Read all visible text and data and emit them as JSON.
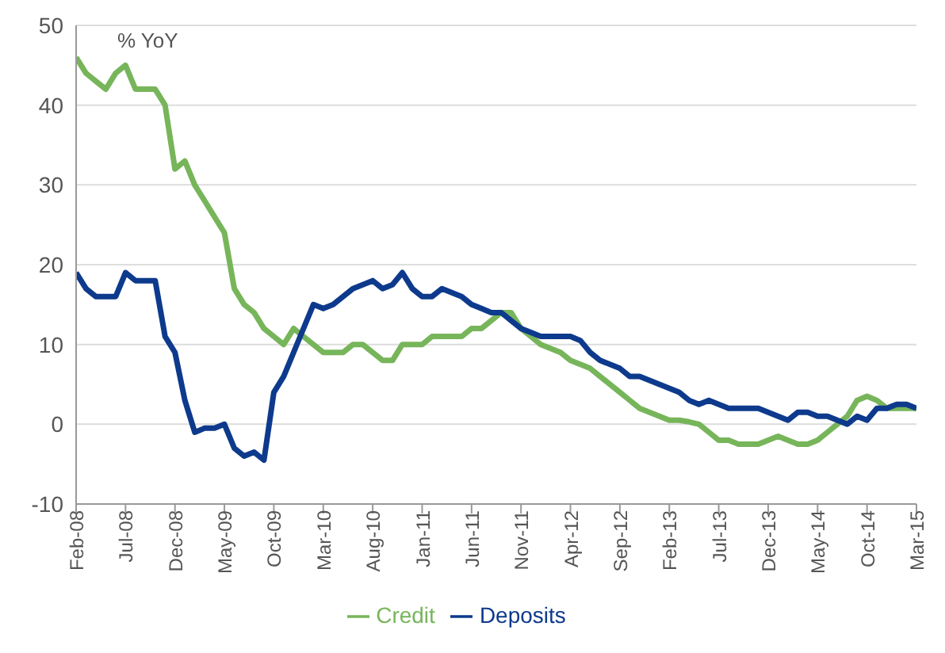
{
  "chart_data": {
    "type": "line",
    "ylabel": "% YoY",
    "categories": [
      "Feb-08",
      null,
      null,
      null,
      null,
      "Jul-08",
      null,
      null,
      null,
      null,
      "Dec-08",
      null,
      null,
      null,
      null,
      "May-09",
      null,
      null,
      null,
      null,
      "Oct-09",
      null,
      null,
      null,
      null,
      "Mar-10",
      null,
      null,
      null,
      null,
      "Aug-10",
      null,
      null,
      null,
      null,
      "Jan-11",
      null,
      null,
      null,
      null,
      "Jun-11",
      null,
      null,
      null,
      null,
      "Nov-11",
      null,
      null,
      null,
      null,
      "Apr-12",
      null,
      null,
      null,
      null,
      "Sep-12",
      null,
      null,
      null,
      null,
      "Feb-13",
      null,
      null,
      null,
      null,
      "Jul-13",
      null,
      null,
      null,
      null,
      "Dec-13",
      null,
      null,
      null,
      null,
      "May-14",
      null,
      null,
      null,
      null,
      "Oct-14",
      null,
      null,
      null,
      null,
      "Mar-15"
    ],
    "series": [
      {
        "name": "Credit",
        "color": "#77b55a",
        "values": [
          46,
          44,
          43,
          42,
          44,
          45,
          42,
          42,
          42,
          40,
          32,
          33,
          30,
          28,
          26,
          24,
          17,
          15,
          14,
          12,
          11,
          10,
          12,
          11,
          10,
          9,
          9,
          9,
          10,
          10,
          9,
          8,
          8,
          10,
          10,
          10,
          11,
          11,
          11,
          11,
          12,
          12,
          13,
          14,
          14,
          12,
          11,
          10,
          9.5,
          9,
          8,
          7.5,
          7,
          6,
          5,
          4,
          3,
          2,
          1.5,
          1,
          0.5,
          0.5,
          0.3,
          0,
          -1,
          -2,
          -2,
          -2.5,
          -2.5,
          -2.5,
          -2,
          -1.5,
          -2,
          -2.5,
          -2.5,
          -2,
          -1,
          0,
          1,
          3,
          3.5,
          3,
          2,
          2,
          2,
          2
        ]
      },
      {
        "name": "Deposits",
        "color": "#0d3a8c",
        "values": [
          19,
          17,
          16,
          16,
          16,
          19,
          18,
          18,
          18,
          11,
          9,
          3,
          -1,
          -0.5,
          -0.5,
          0,
          -3,
          -4,
          -3.5,
          -4.5,
          4,
          6,
          9,
          12,
          15,
          14.5,
          15,
          16,
          17,
          17.5,
          18,
          17,
          17.5,
          19,
          17,
          16,
          16,
          17,
          16.5,
          16,
          15,
          14.5,
          14,
          14,
          13,
          12,
          11.5,
          11,
          11,
          11,
          11,
          10.5,
          9,
          8,
          7.5,
          7,
          6,
          6,
          5.5,
          5,
          4.5,
          4,
          3,
          2.5,
          3,
          2.5,
          2,
          2,
          2,
          2,
          1.5,
          1,
          0.5,
          1.5,
          1.5,
          1,
          1,
          0.5,
          0,
          1,
          0.5,
          2,
          2,
          2.5,
          2.5,
          2
        ]
      }
    ],
    "ylim": [
      -10,
      50
    ],
    "yticks": [
      -10,
      0,
      10,
      20,
      30,
      40,
      50
    ],
    "grid": "y",
    "legend": "bottom",
    "marker": "none",
    "line_style": "solid"
  }
}
